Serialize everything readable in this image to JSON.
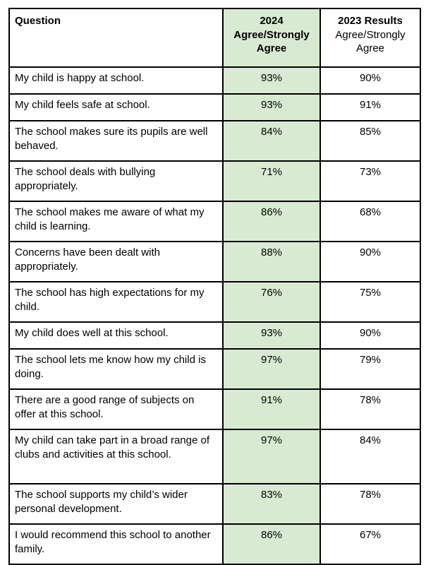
{
  "header": {
    "question": "Question",
    "col2024_line1": "2024",
    "col2024_line2": "Agree/Strongly",
    "col2024_line3": "Agree",
    "col2023_line1": "2023  Results",
    "col2023_line2": "Agree/Strongly",
    "col2023_line3": "Agree"
  },
  "colors": {
    "highlight_column": "#d9ead3",
    "border": "#000000"
  },
  "rows": [
    {
      "question": "My child is happy at school.",
      "y2024": "93%",
      "y2023": "90%"
    },
    {
      "question": "My child feels safe at school.",
      "y2024": "93%",
      "y2023": "91%"
    },
    {
      "question": "The school makes sure its pupils are well behaved.",
      "y2024": "84%",
      "y2023": "85%"
    },
    {
      "question": "The school deals with bullying appropriately.",
      "y2024": "71%",
      "y2023": "73%"
    },
    {
      "question": "The school makes me aware of what my child is learning.",
      "y2024": "86%",
      "y2023": "68%"
    },
    {
      "question": "Concerns have been dealt with appropriately.",
      "y2024": "88%",
      "y2023": "90%"
    },
    {
      "question": "The school has high expectations for my child.",
      "y2024": "76%",
      "y2023": "75%"
    },
    {
      "question": "My child does well at this school.",
      "y2024": "93%",
      "y2023": "90%"
    },
    {
      "question": "The school lets me know how my child is doing.",
      "y2024": "97%",
      "y2023": "79%"
    },
    {
      "question": "There are a good range of subjects on offer at this school.",
      "y2024": "91%",
      "y2023": "78%"
    },
    {
      "question": "My child can take part in a broad range of clubs and activities at this school.",
      "y2024": "97%",
      "y2023": "84%"
    },
    {
      "question": "The school supports my child’s wider personal development.",
      "y2024": "83%",
      "y2023": "78%"
    },
    {
      "question": "I would recommend this school to another family.",
      "y2024": "86%",
      "y2023": "67%"
    }
  ]
}
